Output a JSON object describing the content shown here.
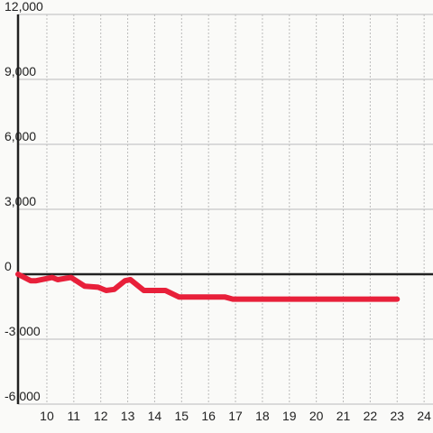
{
  "chart_data": {
    "type": "line",
    "x": [
      8.93,
      9.4,
      9.6,
      10.2,
      10.4,
      10.9,
      11.4,
      11.9,
      12.2,
      12.5,
      12.9,
      13.1,
      13.6,
      14.4,
      14.9,
      16.6,
      16.9,
      23
    ],
    "series": [
      {
        "color": "#e8203a",
        "values": [
          0,
          -300,
          -300,
          -150,
          -250,
          -150,
          -550,
          -600,
          -750,
          -700,
          -300,
          -250,
          -750,
          -750,
          -1050,
          -1050,
          -1150,
          -1150
        ]
      }
    ],
    "xlim": [
      8.93,
      24.33
    ],
    "xticks": [
      10,
      11,
      12,
      13,
      14,
      15,
      16,
      17,
      18,
      19,
      20,
      21,
      22,
      23,
      24
    ],
    "ylim": [
      -6000,
      12000
    ],
    "yticks": [
      {
        "value": -6000,
        "label": "-6,000"
      },
      {
        "value": -3000,
        "label": "-3,000"
      },
      0,
      {
        "value": 3000,
        "label": "3,000"
      },
      {
        "value": 6000,
        "label": "6,000"
      },
      {
        "value": 9000,
        "label": "9,000"
      },
      {
        "value": 12000,
        "label": "12,000"
      }
    ],
    "grid": true
  }
}
